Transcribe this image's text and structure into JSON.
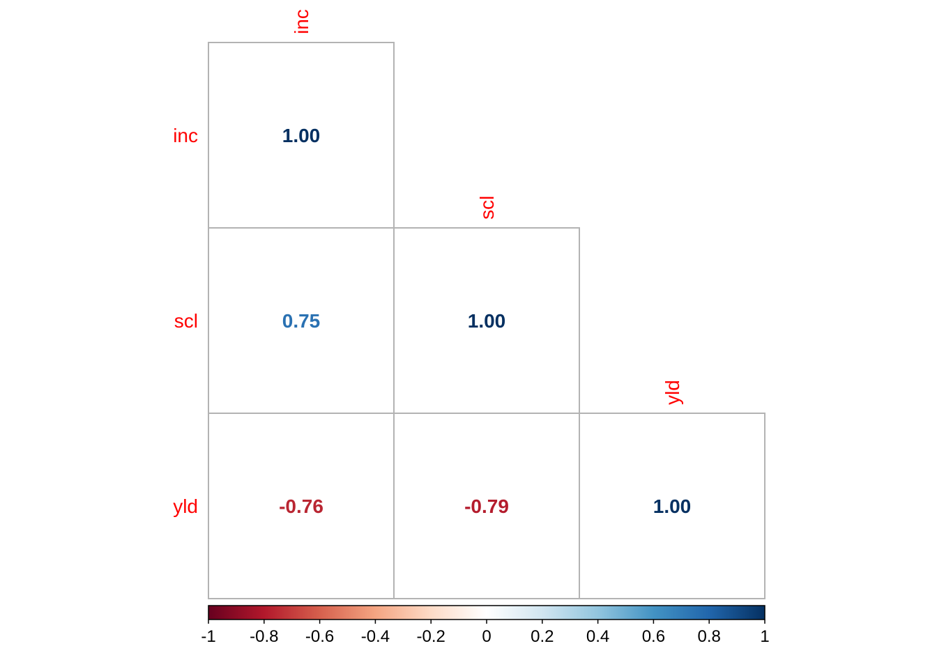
{
  "chart_data": {
    "type": "heatmap",
    "variables": [
      "inc",
      "scl",
      "yld"
    ],
    "matrix": [
      [
        1.0,
        null,
        null
      ],
      [
        0.75,
        1.0,
        null
      ],
      [
        -0.76,
        -0.79,
        1.0
      ]
    ],
    "value_labels": [
      [
        "1.00",
        null,
        null
      ],
      [
        "0.75",
        "1.00",
        null
      ],
      [
        "-0.76",
        "-0.79",
        "1.00"
      ]
    ],
    "layout": "lower-triangle",
    "colorbar": {
      "range": [
        -1,
        1
      ],
      "ticks": [
        -1,
        -0.8,
        -0.6,
        -0.4,
        -0.2,
        0,
        0.2,
        0.4,
        0.6,
        0.8,
        1
      ],
      "tick_labels": [
        "-1",
        "-0.8",
        "-0.6",
        "-0.4",
        "-0.2",
        "0",
        "0.2",
        "0.4",
        "0.6",
        "0.8",
        "1"
      ],
      "placement": "bottom",
      "colors": [
        "#67001f",
        "#b2182b",
        "#d6604d",
        "#f4a582",
        "#fddbc7",
        "#ffffff",
        "#d1e5f0",
        "#92c5de",
        "#4393c3",
        "#2166ac",
        "#053061"
      ]
    },
    "label_color": "#ff0000",
    "grid": "cell borders"
  }
}
